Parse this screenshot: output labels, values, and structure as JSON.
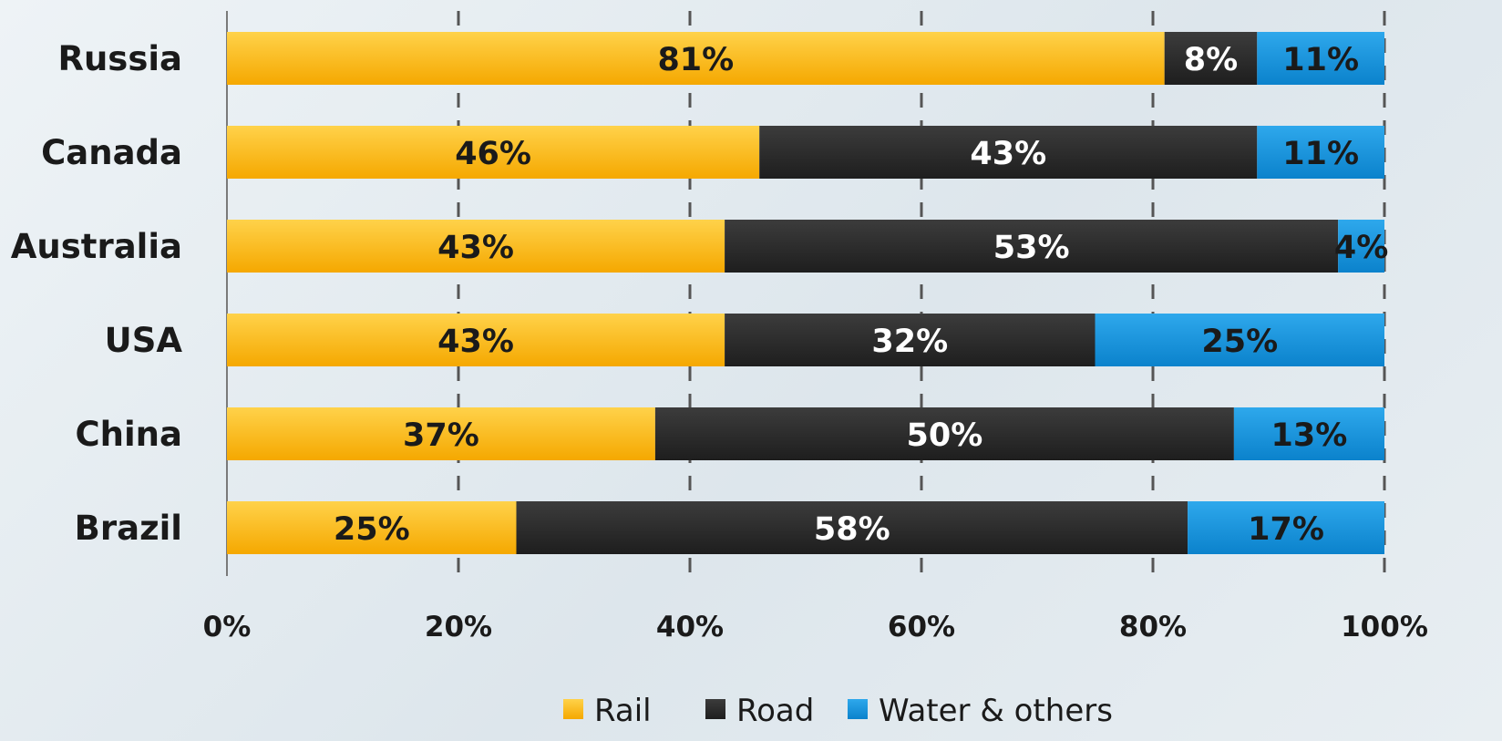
{
  "chart_data": {
    "type": "bar",
    "orientation": "horizontal",
    "stacked": true,
    "normalized": true,
    "categories": [
      "Russia",
      "Canada",
      "Australia",
      "USA",
      "China",
      "Brazil"
    ],
    "series": [
      {
        "name": "Rail",
        "values": [
          81,
          46,
          43,
          43,
          37,
          25
        ],
        "color": "#f9b21a",
        "label_color": "#1a1a1a"
      },
      {
        "name": "Road",
        "values": [
          8,
          43,
          53,
          32,
          50,
          58
        ],
        "color": "#2b2b2b",
        "label_color": "#ffffff"
      },
      {
        "name": "Water & others",
        "values": [
          11,
          11,
          4,
          25,
          13,
          17
        ],
        "color": "#1594dd",
        "label_color": "#1a1a1a"
      }
    ],
    "xlim": [
      0,
      100
    ],
    "xticks": [
      0,
      20,
      40,
      60,
      80,
      100
    ],
    "xtick_labels": [
      "0%",
      "20%",
      "40%",
      "60%",
      "80%",
      "100%"
    ],
    "value_suffix": "%",
    "gridlines": "vertical dashed",
    "legend_position": "bottom",
    "title": "",
    "xlabel": "",
    "ylabel": ""
  }
}
